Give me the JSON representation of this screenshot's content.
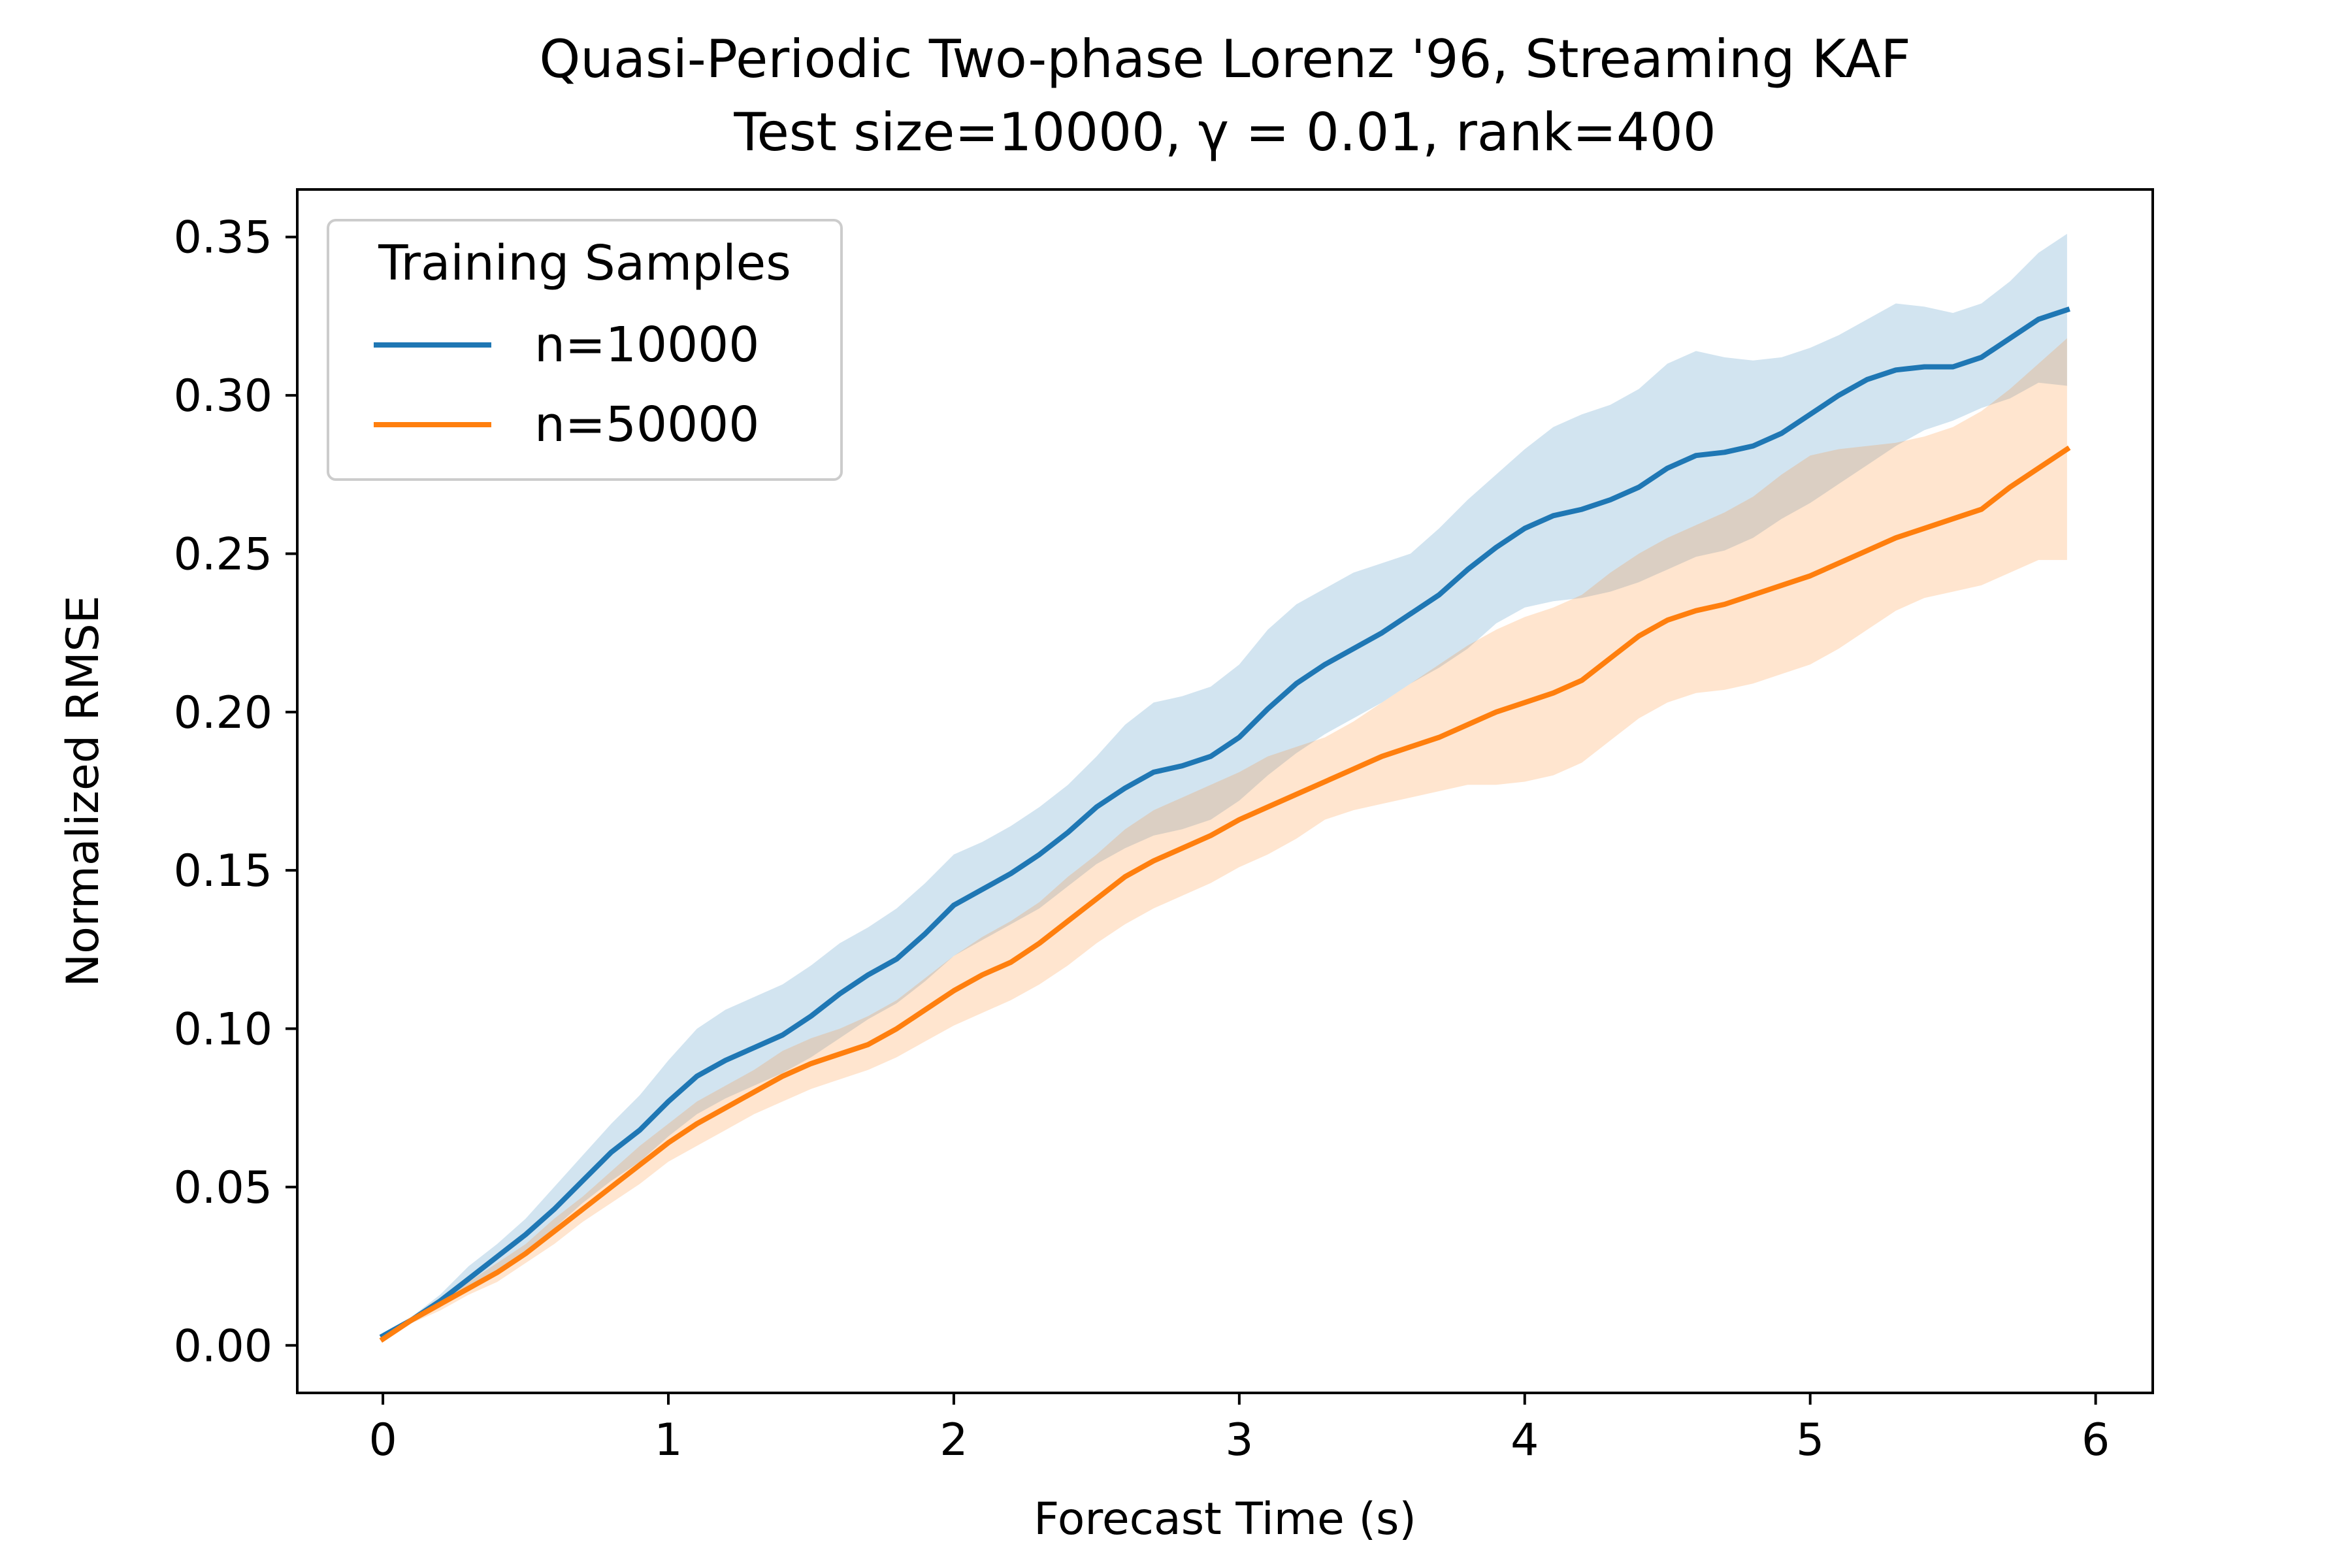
{
  "chart_data": {
    "type": "line",
    "title_line1": "Quasi-Periodic Two-phase Lorenz '96, Streaming KAF",
    "title_line2": "Test size=10000, γ = 0.01, rank=400",
    "xlabel": "Forecast Time (s)",
    "ylabel": "Normalized RMSE",
    "xlim": [
      -0.3,
      6.2
    ],
    "ylim": [
      -0.015,
      0.365
    ],
    "xticks": [
      0,
      1,
      2,
      3,
      4,
      5,
      6
    ],
    "xtick_labels": [
      "0",
      "1",
      "2",
      "3",
      "4",
      "5",
      "6"
    ],
    "yticks": [
      0.0,
      0.05,
      0.1,
      0.15,
      0.2,
      0.25,
      0.3,
      0.35
    ],
    "ytick_labels": [
      "0.00",
      "0.05",
      "0.10",
      "0.15",
      "0.20",
      "0.25",
      "0.30",
      "0.35"
    ],
    "legend": {
      "title": "Training Samples",
      "placement": "upper-left"
    },
    "x": [
      0,
      0.1,
      0.2,
      0.3,
      0.4,
      0.5,
      0.6,
      0.7,
      0.8,
      0.9,
      1.0,
      1.1,
      1.2,
      1.3,
      1.4,
      1.5,
      1.6,
      1.7,
      1.8,
      1.9,
      2.0,
      2.1,
      2.2,
      2.3,
      2.4,
      2.5,
      2.6,
      2.7,
      2.8,
      2.9,
      3.0,
      3.1,
      3.2,
      3.3,
      3.4,
      3.5,
      3.6,
      3.7,
      3.8,
      3.9,
      4.0,
      4.1,
      4.2,
      4.3,
      4.4,
      4.5,
      4.6,
      4.7,
      4.8,
      4.9,
      5.0,
      5.1,
      5.2,
      5.3,
      5.4,
      5.5,
      5.6,
      5.7,
      5.8,
      5.9
    ],
    "series": [
      {
        "name": "n=10000",
        "color": "#1f77b4",
        "values": [
          0.003,
          0.008,
          0.014,
          0.021,
          0.028,
          0.035,
          0.043,
          0.052,
          0.061,
          0.068,
          0.077,
          0.085,
          0.09,
          0.094,
          0.098,
          0.104,
          0.111,
          0.117,
          0.122,
          0.13,
          0.139,
          0.144,
          0.149,
          0.155,
          0.162,
          0.17,
          0.176,
          0.181,
          0.183,
          0.186,
          0.192,
          0.201,
          0.209,
          0.215,
          0.22,
          0.225,
          0.231,
          0.237,
          0.245,
          0.252,
          0.258,
          0.262,
          0.264,
          0.267,
          0.271,
          0.277,
          0.281,
          0.282,
          0.284,
          0.288,
          0.294,
          0.3,
          0.305,
          0.308,
          0.309,
          0.309,
          0.312,
          0.318,
          0.324,
          0.327
        ],
        "lower": [
          0.002,
          0.007,
          0.012,
          0.018,
          0.024,
          0.03,
          0.037,
          0.045,
          0.052,
          0.058,
          0.066,
          0.073,
          0.078,
          0.082,
          0.086,
          0.091,
          0.097,
          0.103,
          0.108,
          0.115,
          0.123,
          0.128,
          0.133,
          0.138,
          0.145,
          0.152,
          0.157,
          0.161,
          0.163,
          0.166,
          0.172,
          0.18,
          0.187,
          0.193,
          0.198,
          0.203,
          0.209,
          0.214,
          0.22,
          0.228,
          0.233,
          0.235,
          0.236,
          0.238,
          0.241,
          0.245,
          0.249,
          0.251,
          0.255,
          0.261,
          0.266,
          0.272,
          0.278,
          0.284,
          0.289,
          0.292,
          0.296,
          0.299,
          0.304,
          0.303
        ],
        "upper": [
          0.004,
          0.009,
          0.016,
          0.025,
          0.032,
          0.04,
          0.05,
          0.06,
          0.07,
          0.079,
          0.09,
          0.1,
          0.106,
          0.11,
          0.114,
          0.12,
          0.127,
          0.132,
          0.138,
          0.146,
          0.155,
          0.159,
          0.164,
          0.17,
          0.177,
          0.186,
          0.196,
          0.203,
          0.205,
          0.208,
          0.215,
          0.226,
          0.234,
          0.239,
          0.244,
          0.247,
          0.25,
          0.258,
          0.267,
          0.275,
          0.283,
          0.29,
          0.294,
          0.297,
          0.302,
          0.31,
          0.314,
          0.312,
          0.311,
          0.312,
          0.315,
          0.319,
          0.324,
          0.329,
          0.328,
          0.326,
          0.329,
          0.336,
          0.345,
          0.351
        ]
      },
      {
        "name": "n=50000",
        "color": "#ff7f0e",
        "values": [
          0.002,
          0.008,
          0.013,
          0.018,
          0.023,
          0.029,
          0.036,
          0.043,
          0.05,
          0.057,
          0.064,
          0.07,
          0.075,
          0.08,
          0.085,
          0.089,
          0.092,
          0.095,
          0.1,
          0.106,
          0.112,
          0.117,
          0.121,
          0.127,
          0.134,
          0.141,
          0.148,
          0.153,
          0.157,
          0.161,
          0.166,
          0.17,
          0.174,
          0.178,
          0.182,
          0.186,
          0.189,
          0.192,
          0.196,
          0.2,
          0.203,
          0.206,
          0.21,
          0.217,
          0.224,
          0.229,
          0.232,
          0.234,
          0.237,
          0.24,
          0.243,
          0.247,
          0.251,
          0.255,
          0.258,
          0.261,
          0.264,
          0.271,
          0.277,
          0.283
        ],
        "lower": [
          0.001,
          0.007,
          0.011,
          0.016,
          0.02,
          0.026,
          0.032,
          0.039,
          0.045,
          0.051,
          0.058,
          0.063,
          0.068,
          0.073,
          0.077,
          0.081,
          0.084,
          0.087,
          0.091,
          0.096,
          0.101,
          0.105,
          0.109,
          0.114,
          0.12,
          0.127,
          0.133,
          0.138,
          0.142,
          0.146,
          0.151,
          0.155,
          0.16,
          0.166,
          0.169,
          0.171,
          0.173,
          0.175,
          0.177,
          0.177,
          0.178,
          0.18,
          0.184,
          0.191,
          0.198,
          0.203,
          0.206,
          0.207,
          0.209,
          0.212,
          0.215,
          0.22,
          0.226,
          0.232,
          0.236,
          0.238,
          0.24,
          0.244,
          0.248,
          0.248
        ],
        "upper": [
          0.003,
          0.009,
          0.015,
          0.02,
          0.026,
          0.032,
          0.04,
          0.047,
          0.055,
          0.063,
          0.07,
          0.077,
          0.082,
          0.087,
          0.093,
          0.097,
          0.1,
          0.104,
          0.109,
          0.116,
          0.123,
          0.129,
          0.134,
          0.14,
          0.148,
          0.155,
          0.163,
          0.169,
          0.173,
          0.177,
          0.181,
          0.186,
          0.189,
          0.192,
          0.197,
          0.203,
          0.209,
          0.215,
          0.221,
          0.226,
          0.23,
          0.233,
          0.237,
          0.244,
          0.25,
          0.255,
          0.259,
          0.263,
          0.268,
          0.275,
          0.281,
          0.283,
          0.284,
          0.285,
          0.287,
          0.29,
          0.295,
          0.302,
          0.31,
          0.318
        ]
      }
    ]
  }
}
